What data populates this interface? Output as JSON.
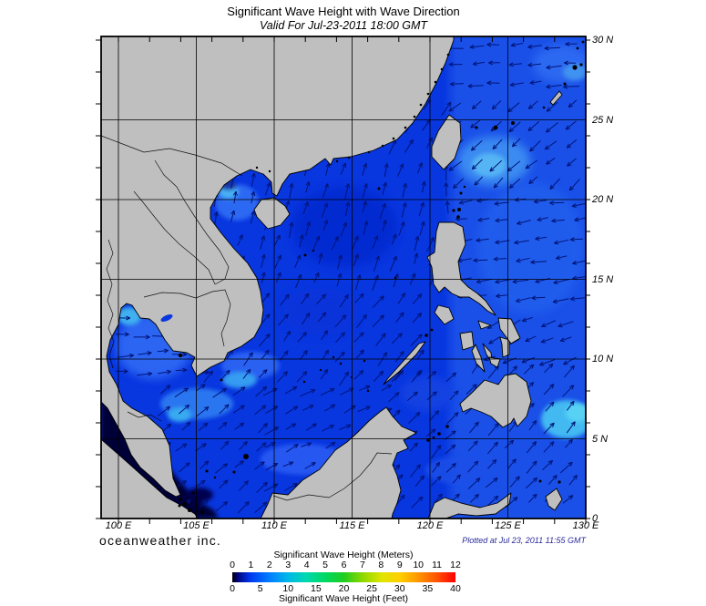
{
  "header": {
    "title": "Significant Wave Height with Wave Direction",
    "subtitle": "Valid For Jul-23-2011 18:00 GMT"
  },
  "map": {
    "x_axis": [
      {
        "label": "100 E",
        "lon": 100
      },
      {
        "label": "105 E",
        "lon": 105
      },
      {
        "label": "110 E",
        "lon": 110
      },
      {
        "label": "115 E",
        "lon": 115
      },
      {
        "label": "120 E",
        "lon": 120
      },
      {
        "label": "125 E",
        "lon": 125
      },
      {
        "label": "130 E",
        "lon": 130
      }
    ],
    "y_axis": [
      {
        "label": "30 N",
        "lat": 30
      },
      {
        "label": "25 N",
        "lat": 25
      },
      {
        "label": "20 N",
        "lat": 20
      },
      {
        "label": "15 N",
        "lat": 15
      },
      {
        "label": "10 N",
        "lat": 10
      },
      {
        "label": "5 N",
        "lat": 5
      },
      {
        "label": "0",
        "lat": 0
      }
    ],
    "colors": {
      "ocean": "#0836df",
      "philippine_sea": "#1e52ea",
      "land": "#bfbfbf",
      "coast": "#000000",
      "grid": "#000000",
      "arrow": "#001478",
      "dark_strait": "#000038"
    },
    "arrow_field": [
      {
        "name": "gulf-of-thailand",
        "lon": [
          99.9,
          105.3
        ],
        "lat": [
          8.6,
          13.2
        ],
        "angle": 4
      },
      {
        "name": "south-china-sea-south",
        "lon": [
          102.5,
          109.3
        ],
        "lat": [
          0.5,
          8.5
        ],
        "angle": 40
      },
      {
        "name": "off-borneo",
        "lon": [
          109.3,
          117.3
        ],
        "lat": [
          1.2,
          8.5
        ],
        "angle": 27
      },
      {
        "name": "south-china-sea-central",
        "lon": [
          105.3,
          120.5
        ],
        "lat": [
          8.5,
          14.2
        ],
        "angle": 52
      },
      {
        "name": "south-china-sea-north-west",
        "lon": [
          106.2,
          120.5
        ],
        "lat": [
          14.2,
          17.8
        ],
        "angle": 70
      },
      {
        "name": "south-china-sea-north",
        "lon": [
          109.2,
          120.5
        ],
        "lat": [
          17.8,
          22.3
        ],
        "angle": 74
      },
      {
        "name": "gulf-of-tonkin",
        "lon": [
          105.8,
          109.2
        ],
        "lat": [
          17.8,
          21.7
        ],
        "angle": 82
      },
      {
        "name": "taiwan-strait",
        "lon": [
          117.0,
          121.3
        ],
        "lat": [
          22.3,
          26.3
        ],
        "angle": 60
      },
      {
        "name": "luzon-strait",
        "lon": [
          120.5,
          121.7
        ],
        "lat": [
          18.6,
          22.3
        ],
        "angle": 88
      },
      {
        "name": "east-china-sea",
        "lon": [
          121.3,
          129.9
        ],
        "lat": [
          26.3,
          30.1
        ],
        "angle": 185
      },
      {
        "name": "east-of-taiwan",
        "lon": [
          121.3,
          129.9
        ],
        "lat": [
          20.3,
          26.3
        ],
        "angle": 222
      },
      {
        "name": "philippine-sea",
        "lon": [
          121.7,
          129.9
        ],
        "lat": [
          12.8,
          20.3
        ],
        "angle": 188
      },
      {
        "name": "philippine-sea-south",
        "lon": [
          123.5,
          129.9
        ],
        "lat": [
          9.8,
          12.8
        ],
        "angle": 205
      },
      {
        "name": "east-of-mindanao",
        "lon": [
          122.3,
          129.9
        ],
        "lat": [
          2.8,
          9.8
        ],
        "angle": 48
      },
      {
        "name": "sulu-sea",
        "lon": [
          117.3,
          122.3
        ],
        "lat": [
          4.8,
          9.3
        ],
        "angle": 45
      },
      {
        "name": "sulu-celebes-gap",
        "lon": [
          117.3,
          122.3
        ],
        "lat": [
          2.8,
          4.8
        ],
        "angle": 48
      },
      {
        "name": "celebes-molucca",
        "lon": [
          117.5,
          129.9
        ],
        "lat": [
          0.4,
          2.8
        ],
        "angle": 45
      }
    ]
  },
  "footer": {
    "brand": "oceanweather inc.",
    "plotted_at": "Plotted at Jul 23, 2011 11:55 GMT"
  },
  "legend": {
    "meters_title": "Significant Wave Height (Meters)",
    "meters_ticks": [
      0,
      1,
      2,
      3,
      4,
      5,
      6,
      7,
      8,
      9,
      10,
      11,
      12
    ],
    "feet_title": "Significant Wave Height (Feet)",
    "feet_ticks": [
      0,
      5,
      10,
      15,
      20,
      25,
      30,
      35,
      40
    ],
    "range_meters": [
      0,
      12
    ],
    "range_feet": [
      0,
      40
    ],
    "gradient": [
      {
        "at": 0,
        "color": "#000000"
      },
      {
        "at": 0.02,
        "color": "#000070"
      },
      {
        "at": 0.08,
        "color": "#0038f0"
      },
      {
        "at": 0.17,
        "color": "#0080ff"
      },
      {
        "at": 0.25,
        "color": "#00b8e8"
      },
      {
        "at": 0.33,
        "color": "#00d8b0"
      },
      {
        "at": 0.42,
        "color": "#00d860"
      },
      {
        "at": 0.5,
        "color": "#20cc20"
      },
      {
        "at": 0.58,
        "color": "#88d800"
      },
      {
        "at": 0.67,
        "color": "#e0e400"
      },
      {
        "at": 0.75,
        "color": "#ffd000"
      },
      {
        "at": 0.83,
        "color": "#ff9800"
      },
      {
        "at": 0.92,
        "color": "#ff5000"
      },
      {
        "at": 1,
        "color": "#ff0000"
      }
    ]
  }
}
